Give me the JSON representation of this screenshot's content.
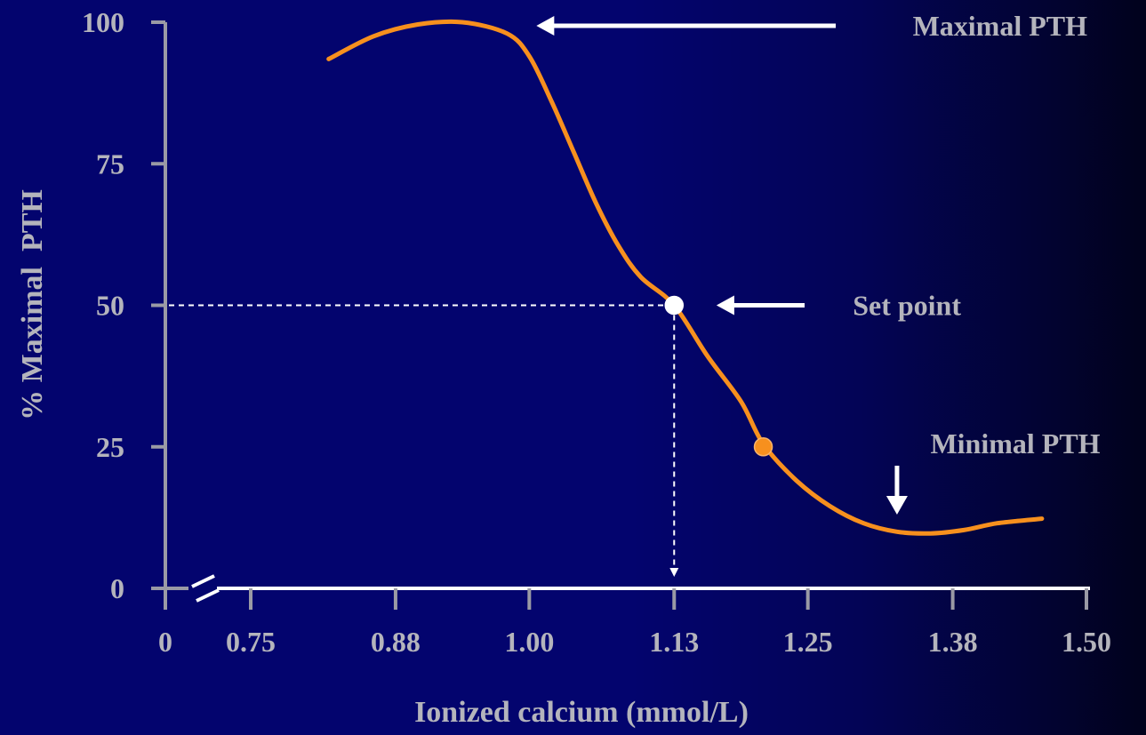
{
  "chart_data": {
    "type": "line",
    "title": "",
    "xlabel": "Ionized calcium (mmol/L)",
    "ylabel": "% Maximal  PTH",
    "x_ticks": [
      "0",
      "0.75",
      "0.88",
      "1.00",
      "1.13",
      "1.25",
      "1.38",
      "1.50"
    ],
    "y_ticks": [
      "0",
      "25",
      "50",
      "75",
      "100"
    ],
    "xlim": [
      0.75,
      1.5
    ],
    "ylim": [
      0,
      100
    ],
    "axis_break": true,
    "grid": false,
    "series": [
      {
        "color": "#f7901e",
        "points": [
          [
            0.82,
            93.5
          ],
          [
            0.86,
            97.5
          ],
          [
            0.9,
            99.6
          ],
          [
            0.94,
            100
          ],
          [
            0.98,
            98
          ],
          [
            1.0,
            94
          ],
          [
            1.02,
            86
          ],
          [
            1.04,
            77
          ],
          [
            1.06,
            68
          ],
          [
            1.08,
            60.5
          ],
          [
            1.1,
            55
          ],
          [
            1.13,
            50
          ],
          [
            1.16,
            41
          ],
          [
            1.19,
            33
          ],
          [
            1.21,
            25.5
          ],
          [
            1.24,
            19
          ],
          [
            1.27,
            14.5
          ],
          [
            1.3,
            11.5
          ],
          [
            1.33,
            10
          ],
          [
            1.36,
            9.7
          ],
          [
            1.39,
            10.3
          ],
          [
            1.42,
            11.5
          ],
          [
            1.46,
            12.3
          ]
        ]
      }
    ],
    "markers": [
      {
        "x": 1.13,
        "y": 50,
        "color": "#ffffff"
      },
      {
        "x": 1.21,
        "y": 25,
        "color": "#f7901e"
      }
    ],
    "reference_lines": {
      "x": 1.13,
      "y": 50
    },
    "annotations": [
      {
        "text": "Maximal PTH",
        "point_x": 1.0,
        "point_y": 100,
        "arrow": "left"
      },
      {
        "text": "Set point",
        "point_x": 1.16,
        "point_y": 50,
        "arrow": "left"
      },
      {
        "text": "Minimal PTH",
        "point_x": 1.33,
        "point_y": 13,
        "arrow": "down"
      }
    ],
    "colors": {
      "axis_y": "#9a9aa5",
      "axis_x": "#ffffff",
      "text": "#b4b4bc",
      "curve": "#f7901e",
      "marker_white": "#ffffff",
      "marker_orange": "#f7901e",
      "arrow": "#ffffff"
    }
  }
}
